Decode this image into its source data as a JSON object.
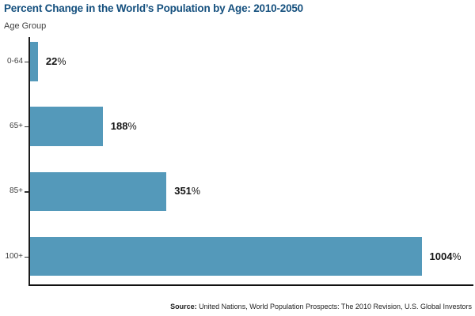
{
  "title": "Percent Change in the World’s Population by Age: 2010-2050",
  "y_axis_label": "Age Group",
  "source_note": {
    "label": "Source:",
    "text": "United Nations, World Population Prospects: The 2010 Revision, U.S. Global Investors"
  },
  "colors": {
    "bar": "#5499BA",
    "title": "#15507E",
    "axis": "#1B1B1B",
    "category_label": "#3F3F3F",
    "value_label": "#151515"
  },
  "chart_data": {
    "type": "bar",
    "orientation": "horizontal",
    "title": "Percent Change in the World’s Population by Age: 2010-2050",
    "ylabel": "Age Group",
    "xlabel": "",
    "categories": [
      "0-64",
      "65+",
      "85+",
      "100+"
    ],
    "values": [
      22,
      188,
      351,
      1004
    ],
    "value_suffix": "%",
    "xlim": [
      0,
      1004
    ],
    "grid": false,
    "legend": false,
    "bar_color": "#5499BA"
  }
}
